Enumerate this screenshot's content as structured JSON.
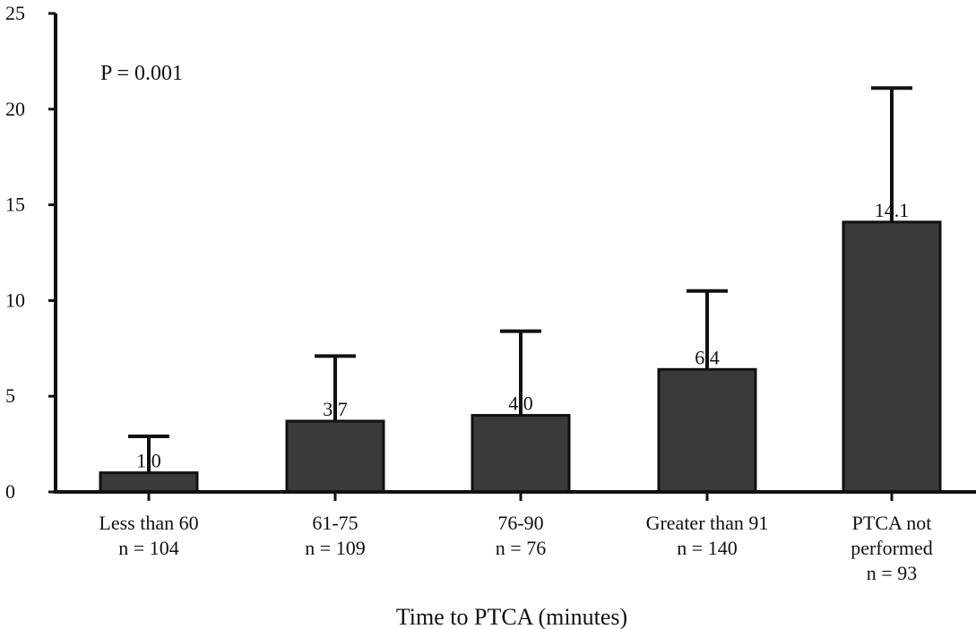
{
  "chart_data": {
    "type": "bar",
    "xlabel": "Time to PTCA (minutes)",
    "ylabel": "",
    "ylim": [
      0,
      25
    ],
    "yticks": [
      0,
      5,
      10,
      15,
      20,
      25
    ],
    "annotation": "P = 0.001",
    "bar_color": "#3a3a3a",
    "categories": [
      [
        "Less than 60",
        "n = 104"
      ],
      [
        "61-75",
        "n = 109"
      ],
      [
        "76-90",
        "n = 76"
      ],
      [
        "Greater than 91",
        "n = 140"
      ],
      [
        "PTCA not",
        "performed",
        "n = 93"
      ]
    ],
    "values": [
      1.0,
      3.7,
      4.0,
      6.4,
      14.1
    ],
    "value_labels": [
      "1.0",
      "3.7",
      "4.0",
      "6.4",
      "14.1"
    ],
    "error_upper": [
      2.9,
      7.1,
      8.4,
      10.5,
      21.1
    ]
  }
}
